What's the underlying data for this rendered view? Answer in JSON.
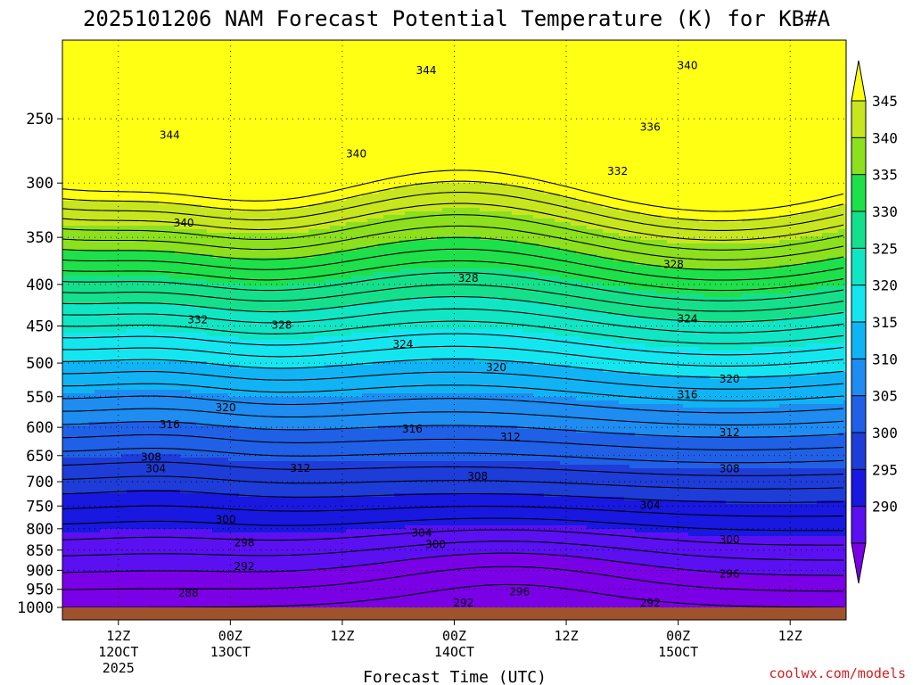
{
  "chart_data": {
    "type": "heatmap",
    "title": "2025101206 NAM Forecast Potential Temperature (K) for KB#A",
    "xlabel": "Forecast Time (UTC)",
    "ylabel": "",
    "credit": "coolwx.com/models",
    "y_ticks": [
      "250",
      "300",
      "350",
      "400",
      "450",
      "500",
      "550",
      "600",
      "650",
      "700",
      "750",
      "800",
      "850",
      "900",
      "950",
      "1000"
    ],
    "y_values": [
      250,
      300,
      350,
      400,
      450,
      500,
      550,
      600,
      650,
      700,
      750,
      800,
      850,
      900,
      950,
      1000
    ],
    "ylim": [
      200,
      1000
    ],
    "x_ticks": [
      {
        "hour": 6,
        "line1": "12Z",
        "line2": "12OCT",
        "line3": "2025"
      },
      {
        "hour": 18,
        "line1": "00Z",
        "line2": "13OCT",
        "line3": ""
      },
      {
        "hour": 30,
        "line1": "12Z",
        "line2": "",
        "line3": ""
      },
      {
        "hour": 42,
        "line1": "00Z",
        "line2": "14OCT",
        "line3": ""
      },
      {
        "hour": 54,
        "line1": "12Z",
        "line2": "",
        "line3": ""
      },
      {
        "hour": 66,
        "line1": "00Z",
        "line2": "15OCT",
        "line3": ""
      },
      {
        "hour": 78,
        "line1": "12Z",
        "line2": "",
        "line3": ""
      }
    ],
    "xlim": [
      0,
      84
    ],
    "colorbar": {
      "ticks": [
        "345",
        "340",
        "335",
        "330",
        "325",
        "320",
        "315",
        "310",
        "305",
        "300",
        "295",
        "290"
      ],
      "levels": [
        285,
        290,
        295,
        300,
        305,
        310,
        315,
        320,
        325,
        330,
        335,
        340,
        345,
        350
      ],
      "colors": [
        "#7a00e6",
        "#5a10f0",
        "#1818e0",
        "#1e3cd8",
        "#2060e6",
        "#1e8cf0",
        "#10b4f5",
        "#14e6f0",
        "#10e6c4",
        "#14e08c",
        "#1ee04a",
        "#8ce01e",
        "#c8e61e",
        "#ffff14"
      ]
    },
    "grid": true,
    "contour_labels": [
      {
        "text": "344",
        "x": 39.0,
        "p": 218
      },
      {
        "text": "340",
        "x": 67.0,
        "p": 215
      },
      {
        "text": "344",
        "x": 11.5,
        "p": 262
      },
      {
        "text": "336",
        "x": 63.0,
        "p": 256
      },
      {
        "text": "340",
        "x": 31.5,
        "p": 276
      },
      {
        "text": "332",
        "x": 59.5,
        "p": 290
      },
      {
        "text": "340",
        "x": 13.0,
        "p": 336
      },
      {
        "text": "328",
        "x": 65.5,
        "p": 378
      },
      {
        "text": "328",
        "x": 43.5,
        "p": 393
      },
      {
        "text": "332",
        "x": 14.5,
        "p": 442
      },
      {
        "text": "328",
        "x": 23.5,
        "p": 449
      },
      {
        "text": "324",
        "x": 36.5,
        "p": 474
      },
      {
        "text": "324",
        "x": 67.0,
        "p": 441
      },
      {
        "text": "320",
        "x": 46.5,
        "p": 506
      },
      {
        "text": "320",
        "x": 71.5,
        "p": 523
      },
      {
        "text": "316",
        "x": 67.0,
        "p": 547
      },
      {
        "text": "320",
        "x": 17.5,
        "p": 567
      },
      {
        "text": "316",
        "x": 11.5,
        "p": 595
      },
      {
        "text": "316",
        "x": 37.5,
        "p": 603
      },
      {
        "text": "312",
        "x": 48.0,
        "p": 617
      },
      {
        "text": "312",
        "x": 71.5,
        "p": 609
      },
      {
        "text": "308",
        "x": 9.5,
        "p": 653
      },
      {
        "text": "304",
        "x": 10.0,
        "p": 675
      },
      {
        "text": "312",
        "x": 25.5,
        "p": 674
      },
      {
        "text": "308",
        "x": 44.5,
        "p": 689
      },
      {
        "text": "308",
        "x": 71.5,
        "p": 675
      },
      {
        "text": "304",
        "x": 63.0,
        "p": 748
      },
      {
        "text": "300",
        "x": 17.5,
        "p": 779
      },
      {
        "text": "304",
        "x": 38.5,
        "p": 810
      },
      {
        "text": "300",
        "x": 71.5,
        "p": 825
      },
      {
        "text": "298",
        "x": 19.5,
        "p": 832
      },
      {
        "text": "300",
        "x": 40.0,
        "p": 837
      },
      {
        "text": "292",
        "x": 19.5,
        "p": 890
      },
      {
        "text": "296",
        "x": 71.5,
        "p": 910
      },
      {
        "text": "296",
        "x": 49.0,
        "p": 957
      },
      {
        "text": "288",
        "x": 13.5,
        "p": 960
      },
      {
        "text": "292",
        "x": 43.0,
        "p": 987
      },
      {
        "text": "292",
        "x": 63.0,
        "p": 987
      }
    ]
  }
}
